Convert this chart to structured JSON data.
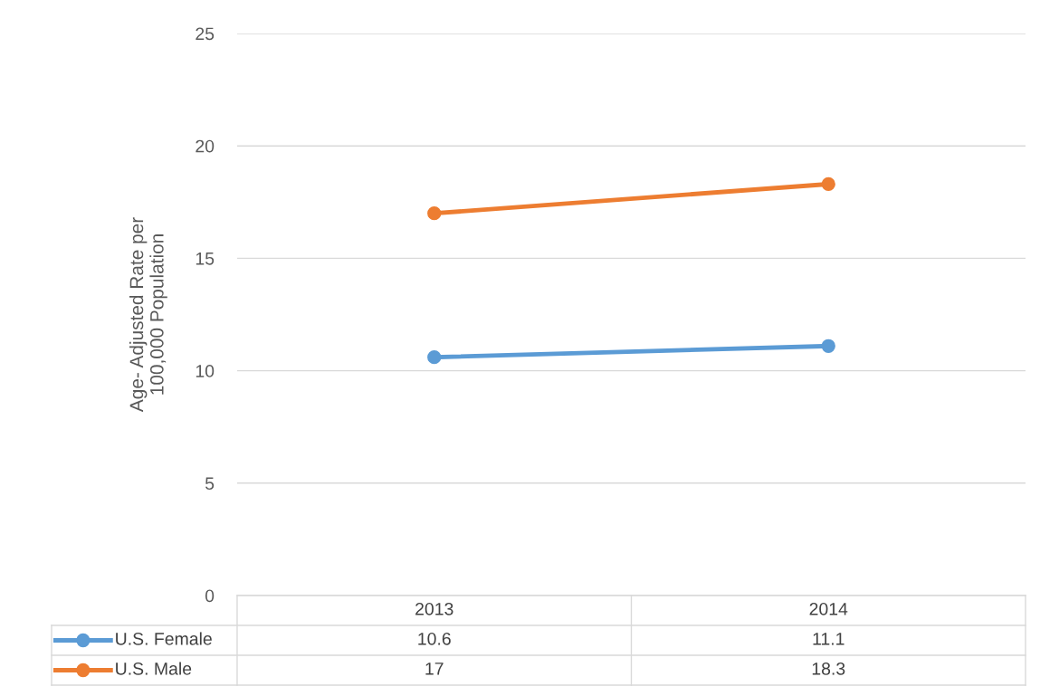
{
  "chart_data": {
    "type": "line",
    "ylabel": "Age- Adjusted Rate per\n100,000 Population",
    "categories": [
      "2013",
      "2014"
    ],
    "series": [
      {
        "name": "U.S. Female",
        "color": "#5b9bd5",
        "values": [
          10.6,
          11.1
        ]
      },
      {
        "name": "U.S. Male",
        "color": "#ed7d31",
        "values": [
          17,
          18.3
        ]
      }
    ],
    "ylim": [
      0,
      25
    ],
    "yticks": [
      0,
      5,
      10,
      15,
      20,
      25
    ],
    "grid": "y",
    "legend": "bottom",
    "marker": "circle",
    "line_style": "solid",
    "data_labels": true
  }
}
